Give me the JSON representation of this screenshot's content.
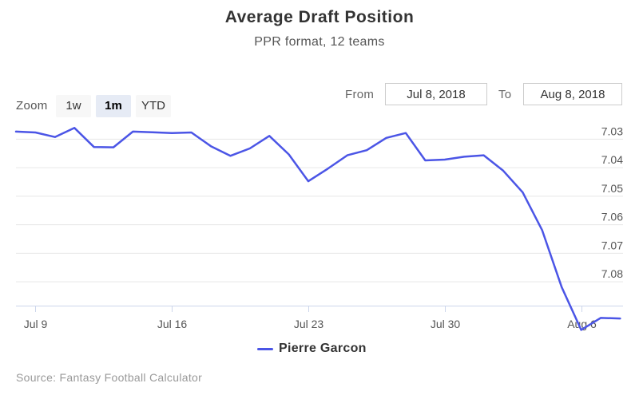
{
  "chart_data": {
    "type": "line",
    "title": "Average Draft Position",
    "subtitle": "PPR format, 12 teams",
    "xlabel": "",
    "ylabel": "",
    "y_reversed": true,
    "ylim": [
      7.025,
      7.0885
    ],
    "grid": true,
    "legend_position": "bottom-center",
    "x_ticks": [
      "Jul 9",
      "Jul 16",
      "Jul 23",
      "Jul 30",
      "Aug 6"
    ],
    "y_ticks": [
      7.03,
      7.04,
      7.05,
      7.06,
      7.07,
      7.08
    ],
    "x": [
      "2018-07-08",
      "2018-07-09",
      "2018-07-10",
      "2018-07-11",
      "2018-07-12",
      "2018-07-13",
      "2018-07-14",
      "2018-07-15",
      "2018-07-16",
      "2018-07-17",
      "2018-07-18",
      "2018-07-19",
      "2018-07-20",
      "2018-07-21",
      "2018-07-22",
      "2018-07-23",
      "2018-07-24",
      "2018-07-25",
      "2018-07-26",
      "2018-07-27",
      "2018-07-28",
      "2018-07-29",
      "2018-07-30",
      "2018-07-31",
      "2018-08-01",
      "2018-08-02",
      "2018-08-03",
      "2018-08-04",
      "2018-08-05",
      "2018-08-06",
      "2018-08-07",
      "2018-08-08"
    ],
    "series": [
      {
        "name": "Pierre Garcon",
        "color": "#4b55e6",
        "values": [
          7.0275,
          7.0278,
          7.0294,
          7.0262,
          7.0329,
          7.033,
          7.0275,
          7.0277,
          7.028,
          7.0278,
          7.0326,
          7.036,
          7.0334,
          7.029,
          7.0355,
          7.0449,
          7.0405,
          7.0358,
          7.034,
          7.0297,
          7.028,
          7.0376,
          7.0373,
          7.0363,
          7.0358,
          7.0412,
          7.0488,
          7.0621,
          7.082,
          7.097,
          7.0928,
          7.093
        ]
      }
    ]
  },
  "zoom": {
    "label": "Zoom",
    "buttons": [
      {
        "label": "1w",
        "active": false
      },
      {
        "label": "1m",
        "active": true
      },
      {
        "label": "YTD",
        "active": false
      }
    ]
  },
  "range": {
    "from_label": "From",
    "from_value": "Jul 8, 2018",
    "to_label": "To",
    "to_value": "Aug 8, 2018"
  },
  "credits": "Source: Fantasy Football Calculator"
}
